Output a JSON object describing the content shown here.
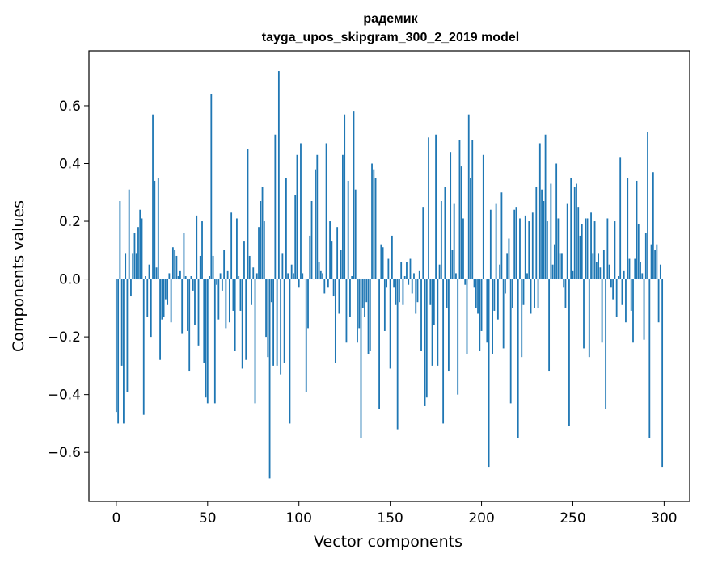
{
  "chart_data": {
    "type": "bar",
    "title": "радемик",
    "subtitle": "tayga_upos_skipgram_300_2_2019 model",
    "xlabel": "Vector components",
    "ylabel": "Components values",
    "xlim": [
      -15,
      314
    ],
    "ylim": [
      -0.77,
      0.79
    ],
    "xticks": [
      0,
      50,
      100,
      150,
      200,
      250,
      300
    ],
    "xtick_labels": [
      "0",
      "50",
      "100",
      "150",
      "200",
      "250",
      "300"
    ],
    "yticks": [
      -0.6,
      -0.4,
      -0.2,
      0.0,
      0.2,
      0.4,
      0.6
    ],
    "ytick_labels": [
      "−0.6",
      "−0.4",
      "−0.2",
      "0.0",
      "0.2",
      "0.4",
      "0.6"
    ],
    "grid": false,
    "bar_color": "#1f77b4",
    "x": [
      0,
      1,
      2,
      3,
      4,
      5,
      6,
      7,
      8,
      9,
      10,
      11,
      12,
      13,
      14,
      15,
      16,
      17,
      18,
      19,
      20,
      21,
      22,
      23,
      24,
      25,
      26,
      27,
      28,
      29,
      30,
      31,
      32,
      33,
      34,
      35,
      36,
      37,
      38,
      39,
      40,
      41,
      42,
      43,
      44,
      45,
      46,
      47,
      48,
      49,
      50,
      51,
      52,
      53,
      54,
      55,
      56,
      57,
      58,
      59,
      60,
      61,
      62,
      63,
      64,
      65,
      66,
      67,
      68,
      69,
      70,
      71,
      72,
      73,
      74,
      75,
      76,
      77,
      78,
      79,
      80,
      81,
      82,
      83,
      84,
      85,
      86,
      87,
      88,
      89,
      90,
      91,
      92,
      93,
      94,
      95,
      96,
      97,
      98,
      99,
      100,
      101,
      102,
      103,
      104,
      105,
      106,
      107,
      108,
      109,
      110,
      111,
      112,
      113,
      114,
      115,
      116,
      117,
      118,
      119,
      120,
      121,
      122,
      123,
      124,
      125,
      126,
      127,
      128,
      129,
      130,
      131,
      132,
      133,
      134,
      135,
      136,
      137,
      138,
      139,
      140,
      141,
      142,
      143,
      144,
      145,
      146,
      147,
      148,
      149,
      150,
      151,
      152,
      153,
      154,
      155,
      156,
      157,
      158,
      159,
      160,
      161,
      162,
      163,
      164,
      165,
      166,
      167,
      168,
      169,
      170,
      171,
      172,
      173,
      174,
      175,
      176,
      177,
      178,
      179,
      180,
      181,
      182,
      183,
      184,
      185,
      186,
      187,
      188,
      189,
      190,
      191,
      192,
      193,
      194,
      195,
      196,
      197,
      198,
      199,
      200,
      201,
      202,
      203,
      204,
      205,
      206,
      207,
      208,
      209,
      210,
      211,
      212,
      213,
      214,
      215,
      216,
      217,
      218,
      219,
      220,
      221,
      222,
      223,
      224,
      225,
      226,
      227,
      228,
      229,
      230,
      231,
      232,
      233,
      234,
      235,
      236,
      237,
      238,
      239,
      240,
      241,
      242,
      243,
      244,
      245,
      246,
      247,
      248,
      249,
      250,
      251,
      252,
      253,
      254,
      255,
      256,
      257,
      258,
      259,
      260,
      261,
      262,
      263,
      264,
      265,
      266,
      267,
      268,
      269,
      270,
      271,
      272,
      273,
      274,
      275,
      276,
      277,
      278,
      279,
      280,
      281,
      282,
      283,
      284,
      285,
      286,
      287,
      288,
      289,
      290,
      291,
      292,
      293,
      294,
      295,
      296,
      297,
      298,
      299
    ],
    "values": [
      -0.46,
      -0.5,
      0.27,
      -0.3,
      -0.5,
      0.09,
      -0.39,
      0.31,
      -0.06,
      0.09,
      0.16,
      0.09,
      0.18,
      0.24,
      0.21,
      -0.47,
      0.01,
      -0.13,
      0.05,
      -0.2,
      0.57,
      0.34,
      0.04,
      0.35,
      -0.28,
      -0.14,
      -0.13,
      -0.07,
      -0.09,
      0.02,
      -0.15,
      0.11,
      0.1,
      0.08,
      0.01,
      0.03,
      -0.19,
      0.16,
      0.01,
      -0.18,
      -0.32,
      0.01,
      -0.04,
      -0.16,
      0.22,
      -0.23,
      0.08,
      0.2,
      -0.29,
      -0.41,
      -0.43,
      0.01,
      0.64,
      0.08,
      -0.43,
      -0.02,
      -0.14,
      0.02,
      -0.04,
      0.1,
      -0.17,
      0.03,
      -0.15,
      0.23,
      -0.11,
      -0.25,
      0.21,
      0.01,
      -0.11,
      -0.31,
      0.13,
      -0.28,
      0.45,
      0.08,
      -0.09,
      0.04,
      -0.43,
      0.02,
      0.18,
      0.27,
      0.32,
      0.2,
      -0.2,
      -0.27,
      -0.69,
      -0.08,
      -0.3,
      0.5,
      -0.3,
      0.72,
      -0.33,
      0.09,
      -0.29,
      0.35,
      0.02,
      -0.5,
      0.05,
      0.02,
      0.29,
      0.43,
      -0.03,
      0.47,
      0.02,
      0.0,
      -0.39,
      -0.17,
      0.15,
      0.27,
      0.0,
      0.38,
      0.43,
      0.06,
      0.03,
      0.02,
      -0.05,
      0.47,
      -0.03,
      0.2,
      0.13,
      -0.06,
      -0.29,
      0.18,
      -0.12,
      0.1,
      0.43,
      0.57,
      -0.22,
      0.34,
      -0.13,
      0.01,
      0.58,
      0.31,
      -0.22,
      -0.17,
      -0.55,
      -0.1,
      -0.13,
      -0.08,
      -0.26,
      -0.25,
      0.4,
      0.38,
      0.35,
      0.0,
      -0.45,
      0.12,
      0.11,
      -0.18,
      -0.03,
      0.07,
      -0.31,
      0.15,
      -0.03,
      -0.09,
      -0.52,
      -0.08,
      0.06,
      -0.09,
      0.01,
      0.06,
      -0.02,
      0.07,
      -0.05,
      0.02,
      -0.12,
      -0.08,
      0.03,
      -0.25,
      0.25,
      -0.44,
      -0.41,
      0.49,
      -0.09,
      -0.3,
      -0.16,
      0.5,
      -0.3,
      0.05,
      0.27,
      -0.5,
      0.32,
      -0.1,
      -0.32,
      0.44,
      0.1,
      0.26,
      0.02,
      -0.4,
      0.48,
      0.39,
      0.21,
      -0.02,
      -0.26,
      0.57,
      0.35,
      0.48,
      -0.03,
      -0.1,
      -0.12,
      -0.25,
      -0.18,
      0.43,
      0.0,
      -0.22,
      -0.65,
      0.24,
      -0.26,
      -0.11,
      0.26,
      -0.14,
      0.05,
      0.3,
      -0.24,
      -0.05,
      0.09,
      0.14,
      -0.43,
      -0.1,
      0.24,
      0.25,
      -0.55,
      0.21,
      -0.27,
      -0.09,
      0.22,
      0.02,
      0.2,
      -0.12,
      0.23,
      -0.1,
      0.32,
      -0.1,
      0.47,
      0.31,
      0.27,
      0.5,
      0.2,
      -0.32,
      0.33,
      0.05,
      0.12,
      0.4,
      0.21,
      0.09,
      0.09,
      -0.03,
      -0.1,
      0.26,
      -0.51,
      0.35,
      0.03,
      0.32,
      0.33,
      0.25,
      0.15,
      0.19,
      -0.24,
      0.21,
      0.21,
      -0.27,
      0.23,
      0.09,
      0.2,
      0.06,
      0.09,
      0.04,
      -0.22,
      0.1,
      -0.45,
      0.21,
      0.05,
      -0.03,
      -0.07,
      0.2,
      -0.13,
      0.01,
      0.42,
      -0.09,
      0.03,
      -0.15,
      0.35,
      0.07,
      -0.11,
      -0.22,
      0.07,
      0.34,
      0.19,
      0.06,
      0.02,
      -0.21,
      0.16,
      0.51,
      -0.55,
      0.12,
      0.37,
      0.1,
      0.12,
      -0.15,
      0.05,
      -0.65
    ]
  }
}
